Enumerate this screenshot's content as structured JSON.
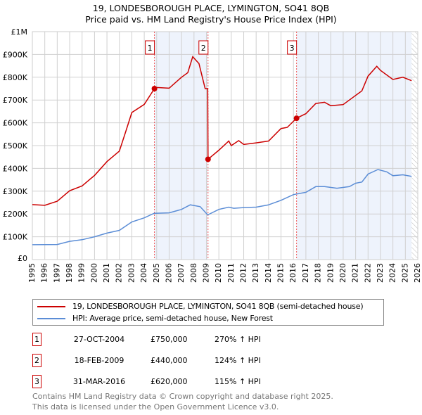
{
  "chart_data": {
    "type": "line",
    "title": "19, LONDESBOROUGH PLACE, LYMINGTON, SO41 8QB",
    "subtitle": "Price paid vs. HM Land Registry's House Price Index (HPI)",
    "xlim": [
      1995,
      2026
    ],
    "ylim": [
      0,
      1000000
    ],
    "x_ticks": [
      "1995",
      "1996",
      "1997",
      "1998",
      "1999",
      "2000",
      "2001",
      "2002",
      "2003",
      "2004",
      "2005",
      "2006",
      "2007",
      "2008",
      "2009",
      "2010",
      "2011",
      "2012",
      "2013",
      "2014",
      "2015",
      "2016",
      "2017",
      "2018",
      "2019",
      "2020",
      "2021",
      "2022",
      "2023",
      "2024",
      "2025",
      "2026"
    ],
    "y_ticks": [
      {
        "v": 0,
        "label": "£0"
      },
      {
        "v": 100000,
        "label": "£100K"
      },
      {
        "v": 200000,
        "label": "£200K"
      },
      {
        "v": 300000,
        "label": "£300K"
      },
      {
        "v": 400000,
        "label": "£400K"
      },
      {
        "v": 500000,
        "label": "£500K"
      },
      {
        "v": 600000,
        "label": "£600K"
      },
      {
        "v": 700000,
        "label": "£700K"
      },
      {
        "v": 800000,
        "label": "£800K"
      },
      {
        "v": 900000,
        "label": "£900K"
      },
      {
        "v": 1000000,
        "label": "£1M"
      }
    ],
    "grid": true,
    "series": [
      {
        "name": "19, LONDESBOROUGH PLACE, LYMINGTON, SO41 8QB (semi-detached house)",
        "color": "#cc0000",
        "x": [
          1995,
          1996,
          1997,
          1998,
          1999,
          2000,
          2001,
          2002,
          2002.5,
          2003,
          2004,
          2004.82,
          2005,
          2006,
          2007,
          2007.5,
          2007.9,
          2008.4,
          2008.9,
          2009.1,
          2009.13,
          2010,
          2010.8,
          2011,
          2011.6,
          2012,
          2013,
          2014,
          2015,
          2015.5,
          2016.25,
          2017,
          2017.8,
          2018.5,
          2019,
          2020,
          2021,
          2021.5,
          2022,
          2022.7,
          2023,
          2024,
          2024.8,
          2025.5
        ],
        "y": [
          241000,
          238000,
          256000,
          302000,
          323000,
          369000,
          430000,
          476000,
          560000,
          645000,
          681000,
          750000,
          755000,
          752000,
          800000,
          820000,
          890000,
          860000,
          750000,
          750000,
          440000,
          480000,
          520000,
          500000,
          522000,
          505000,
          512000,
          520000,
          575000,
          580000,
          620000,
          640000,
          685000,
          690000,
          675000,
          680000,
          720000,
          740000,
          805000,
          848000,
          830000,
          790000,
          800000,
          785000
        ]
      },
      {
        "name": "HPI: Average price, semi-detached house, New Forest",
        "color": "#5b8dd6",
        "x": [
          1995,
          1997,
          1998,
          1999,
          2000,
          2001,
          2002,
          2003,
          2004,
          2004.8,
          2006,
          2007,
          2007.7,
          2008.5,
          2009.1,
          2010,
          2010.8,
          2011.2,
          2012,
          2013,
          2014,
          2015,
          2016,
          2017,
          2017.8,
          2018.5,
          2019.5,
          2020.5,
          2021,
          2021.5,
          2022,
          2022.8,
          2023.5,
          2024,
          2024.8,
          2025.5
        ],
        "y": [
          65000,
          66000,
          80000,
          87000,
          100000,
          116000,
          128000,
          165000,
          183000,
          203000,
          205000,
          220000,
          240000,
          232000,
          196000,
          220000,
          230000,
          225000,
          228000,
          230000,
          240000,
          260000,
          285000,
          295000,
          320000,
          320000,
          313000,
          320000,
          335000,
          340000,
          375000,
          395000,
          385000,
          368000,
          372000,
          365000
        ]
      }
    ],
    "sales": [
      {
        "num": "1",
        "date": "27-OCT-2004",
        "x": 2004.82,
        "price": "£750,000",
        "value": 750000,
        "pct": "270% ↑ HPI"
      },
      {
        "num": "2",
        "date": "18-FEB-2009",
        "x": 2009.13,
        "price": "£440,000",
        "value": 440000,
        "pct": "124% ↑ HPI"
      },
      {
        "num": "3",
        "date": "31-MAR-2016",
        "x": 2016.25,
        "price": "£620,000",
        "value": 620000,
        "pct": "115% ↑ HPI"
      }
    ],
    "shaded_ranges": [
      [
        2004.82,
        2009.13
      ],
      [
        2016.25,
        2025.5
      ]
    ],
    "hatch_from": 2025.5,
    "legend_position": "below"
  },
  "footer": {
    "line1": "Contains HM Land Registry data © Crown copyright and database right 2025.",
    "line2": "This data is licensed under the Open Government Licence v3.0."
  }
}
